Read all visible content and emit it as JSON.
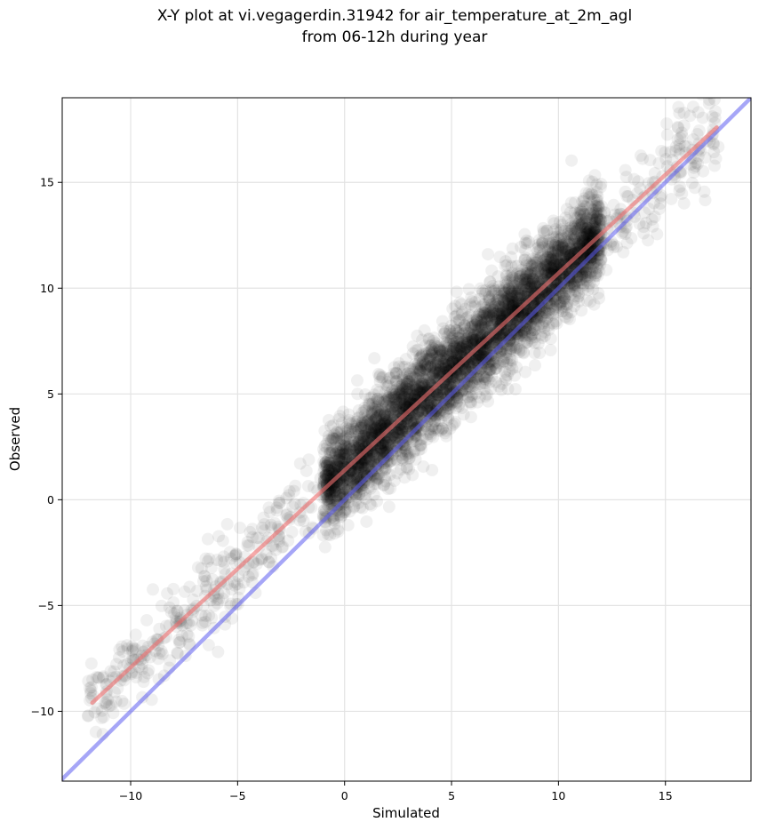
{
  "chart_data": {
    "type": "scatter",
    "title_lines": [
      "X-Y plot at vi.vegagerdin.31942 for air_temperature_at_2m_agl",
      "from 06-12h during year"
    ],
    "xlabel": "Simulated",
    "ylabel": "Observed",
    "xlim": [
      -13.2,
      19.0
    ],
    "ylim": [
      -13.3,
      19.0
    ],
    "xticks": [
      -10,
      -5,
      0,
      5,
      10,
      15
    ],
    "yticks": [
      -10,
      -5,
      0,
      5,
      10,
      15
    ],
    "xtick_labels": [
      "−10",
      "−5",
      "0",
      "5",
      "10",
      "15"
    ],
    "ytick_labels": [
      "−10",
      "−5",
      "0",
      "5",
      "10",
      "15"
    ],
    "grid": true,
    "point_color": "#000000",
    "point_opacity": 0.06,
    "n_points": 5000,
    "trend": {
      "slope": 0.93,
      "intercept": 1.45
    },
    "spread": 1.1,
    "simulated_range": [
      -12,
      17.5
    ],
    "lines": [
      {
        "kind": "identity",
        "color": "#5c5cf0",
        "opacity": 0.55,
        "x": [
          -13.2,
          19.0
        ],
        "y": [
          -13.2,
          19.0
        ]
      },
      {
        "kind": "fit",
        "color": "#f07070",
        "opacity": 0.6,
        "x": [
          -11.8,
          17.4
        ],
        "y": [
          -9.6,
          17.6
        ]
      }
    ]
  }
}
